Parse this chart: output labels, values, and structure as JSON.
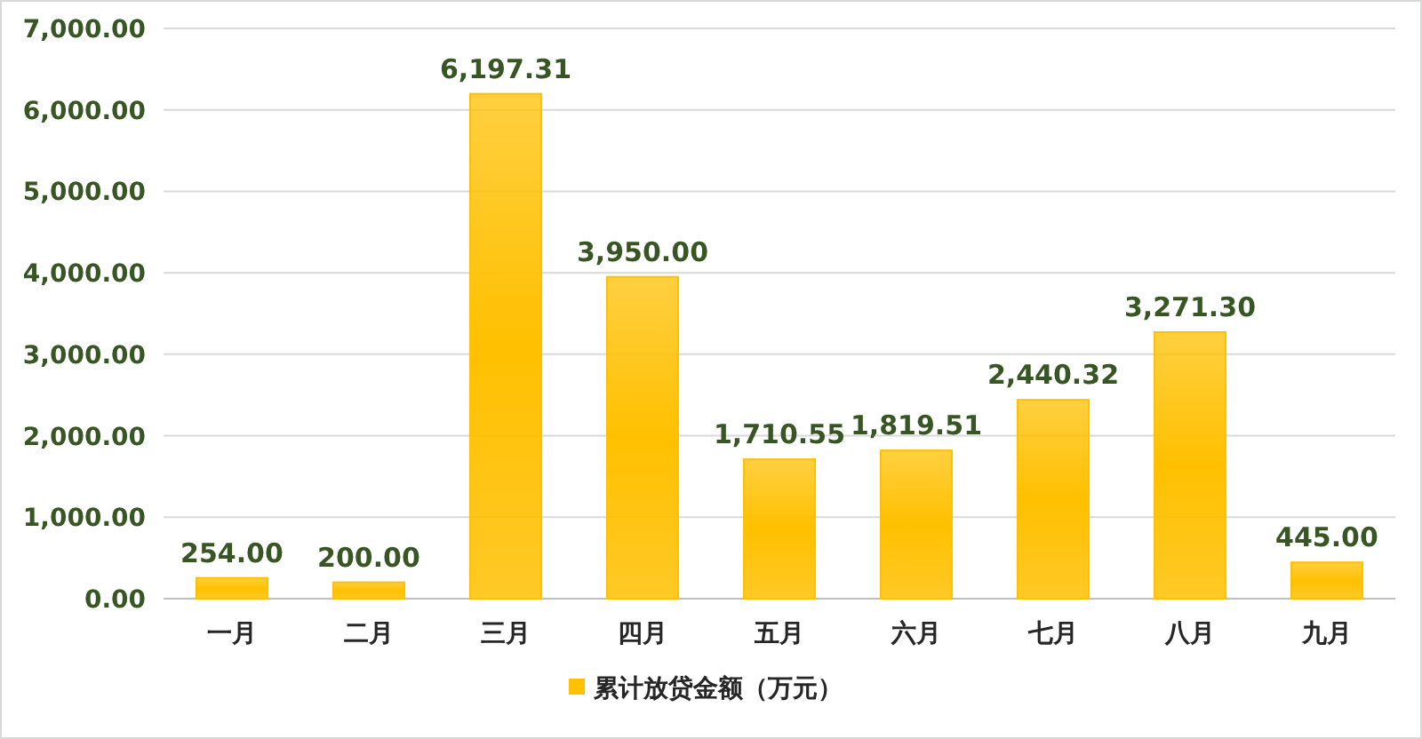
{
  "chart_data": {
    "type": "bar",
    "categories": [
      "一月",
      "二月",
      "三月",
      "四月",
      "五月",
      "六月",
      "七月",
      "八月",
      "九月"
    ],
    "series": [
      {
        "name": "累计放贷金额（万元）",
        "color": "#ffc000",
        "values": [
          254.0,
          200.0,
          6197.31,
          3950.0,
          1710.55,
          1819.51,
          2440.32,
          3271.3,
          445.0
        ],
        "value_labels": [
          "254.00",
          "200.00",
          "6,197.31",
          "3,950.00",
          "1,710.55",
          "1,819.51",
          "2,440.32",
          "3,271.30",
          "445.00"
        ]
      }
    ],
    "ylim": [
      0,
      7000
    ],
    "yticks": [
      {
        "value": 0,
        "label": "0.00"
      },
      {
        "value": 1000,
        "label": "1,000.00"
      },
      {
        "value": 2000,
        "label": "2,000.00"
      },
      {
        "value": 3000,
        "label": "3,000.00"
      },
      {
        "value": 4000,
        "label": "4,000.00"
      },
      {
        "value": 5000,
        "label": "5,000.00"
      },
      {
        "value": 6000,
        "label": "6,000.00"
      },
      {
        "value": 7000,
        "label": "7,000.00"
      }
    ],
    "grid": "y",
    "legend": "bottom"
  }
}
